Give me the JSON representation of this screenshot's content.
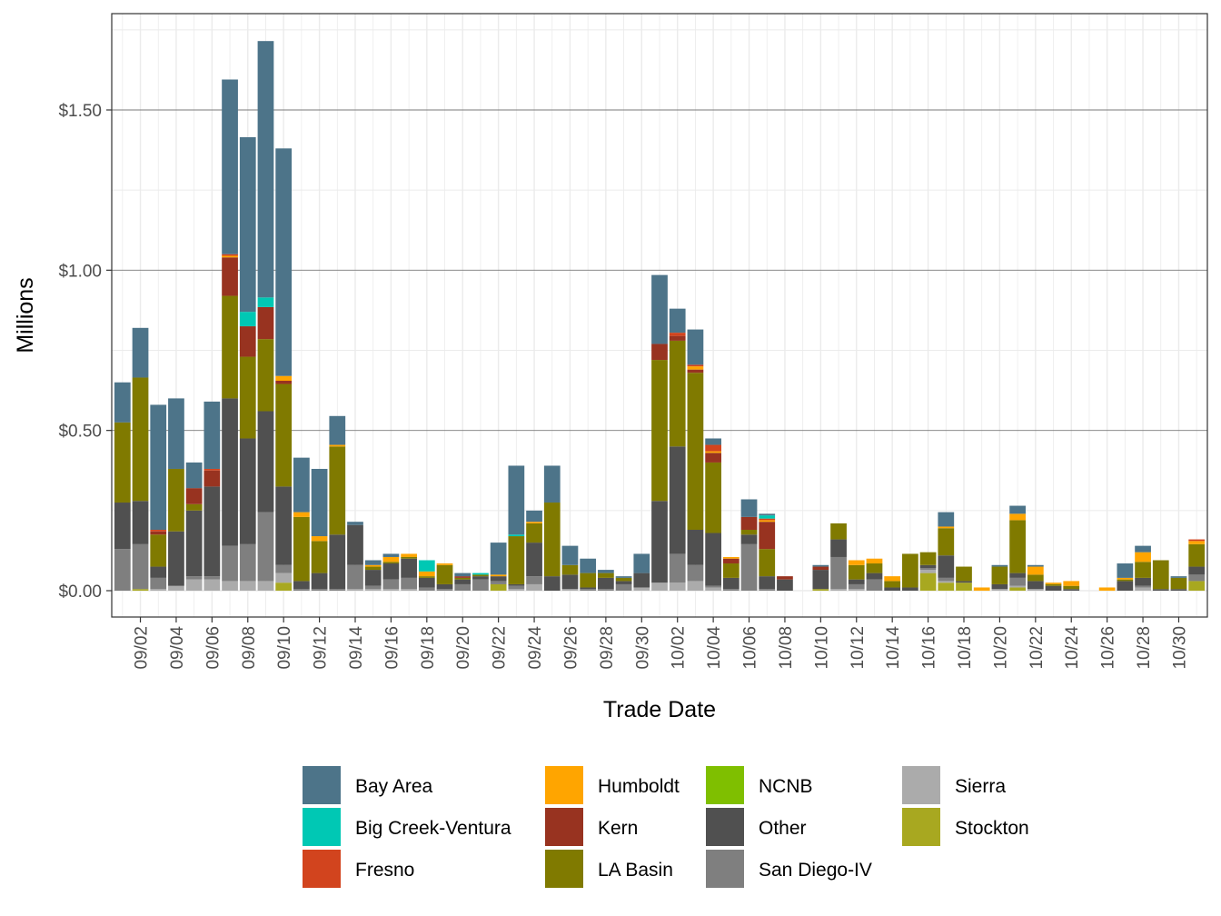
{
  "chart_data": {
    "type": "bar",
    "stacked": true,
    "xlabel": "Trade Date",
    "ylabel": "Millions",
    "yticks": [
      "$0.00",
      "$0.50",
      "$1.00",
      "$1.50"
    ],
    "ytick_values": [
      0,
      0.5,
      1.0,
      1.5
    ],
    "ylim": [
      -0.08,
      1.8
    ],
    "grid": true,
    "legend_position": "bottom",
    "categories": [
      "09/01",
      "09/02",
      "09/03",
      "09/04",
      "09/05",
      "09/06",
      "09/07",
      "09/08",
      "09/09",
      "09/10",
      "09/11",
      "09/12",
      "09/13",
      "09/14",
      "09/15",
      "09/16",
      "09/17",
      "09/18",
      "09/19",
      "09/20",
      "09/21",
      "09/22",
      "09/23",
      "09/24",
      "09/25",
      "09/26",
      "09/27",
      "09/28",
      "09/29",
      "09/30",
      "10/01",
      "10/02",
      "10/03",
      "10/04",
      "10/05",
      "10/06",
      "10/07",
      "10/08",
      "10/09",
      "10/10",
      "10/11",
      "10/12",
      "10/13",
      "10/14",
      "10/15",
      "10/16",
      "10/17",
      "10/18",
      "10/19",
      "10/20",
      "10/21",
      "10/22",
      "10/23",
      "10/24",
      "10/25",
      "10/26",
      "10/27",
      "10/28",
      "10/29",
      "10/30",
      "10/31"
    ],
    "xtick_labels": [
      "09/02",
      "09/04",
      "09/06",
      "09/08",
      "09/10",
      "09/12",
      "09/14",
      "09/16",
      "09/18",
      "09/20",
      "09/22",
      "09/24",
      "09/26",
      "09/28",
      "09/30",
      "10/02",
      "10/04",
      "10/06",
      "10/08",
      "10/10",
      "10/12",
      "10/14",
      "10/16",
      "10/18",
      "10/20",
      "10/22",
      "10/24",
      "10/26",
      "10/28",
      "10/30"
    ],
    "series": [
      {
        "name": "Stockton",
        "color": "#a8a820",
        "values": [
          0,
          0.005,
          0,
          0,
          0,
          0,
          0,
          0,
          0,
          0.025,
          0,
          0,
          0,
          0,
          0,
          0,
          0,
          0,
          0,
          0,
          0,
          0.02,
          0,
          0,
          0,
          0,
          0,
          0,
          0,
          0,
          0,
          0,
          0,
          0,
          0,
          0,
          0,
          0,
          0,
          0.005,
          0,
          0,
          0,
          0,
          0,
          0.055,
          0.025,
          0.025,
          0,
          0,
          0.01,
          0,
          0,
          0,
          0,
          0,
          0,
          0,
          0,
          0,
          0.03
        ]
      },
      {
        "name": "Sierra",
        "color": "#ababab",
        "values": [
          0,
          0,
          0.005,
          0.015,
          0.035,
          0.035,
          0.03,
          0.03,
          0.03,
          0.03,
          0,
          0,
          0,
          0.005,
          0.005,
          0.005,
          0.005,
          0,
          0,
          0,
          0,
          0,
          0.005,
          0.02,
          0,
          0.005,
          0,
          0,
          0,
          0.01,
          0.025,
          0.025,
          0.03,
          0.01,
          0,
          0,
          0,
          0,
          0,
          0,
          0.005,
          0.005,
          0,
          0,
          0,
          0.01,
          0.005,
          0,
          0,
          0.005,
          0.005,
          0.005,
          0,
          0,
          0,
          0,
          0,
          0.01,
          0,
          0,
          0
        ]
      },
      {
        "name": "San Diego-IV",
        "color": "#7f7f7f",
        "values": [
          0.13,
          0.14,
          0.035,
          0,
          0.01,
          0.01,
          0.11,
          0.115,
          0.215,
          0.025,
          0.005,
          0.005,
          0.005,
          0.075,
          0.01,
          0.03,
          0.035,
          0.01,
          0.005,
          0.02,
          0.035,
          0.01,
          0.01,
          0.025,
          0,
          0,
          0.005,
          0.005,
          0.02,
          0,
          0,
          0.09,
          0.05,
          0.005,
          0.005,
          0.145,
          0.005,
          0,
          0,
          0,
          0.1,
          0.015,
          0.035,
          0,
          0,
          0.005,
          0.01,
          0,
          0,
          0,
          0.025,
          0,
          0,
          0,
          0,
          0,
          0,
          0.005,
          0,
          0,
          0.02
        ]
      },
      {
        "name": "Other",
        "color": "#505050",
        "values": [
          0.145,
          0.135,
          0.035,
          0.17,
          0.205,
          0.28,
          0.46,
          0.33,
          0.315,
          0.245,
          0.025,
          0.05,
          0.17,
          0.125,
          0.05,
          0.05,
          0.06,
          0.03,
          0.015,
          0.015,
          0.01,
          0.015,
          0.005,
          0.105,
          0.045,
          0.045,
          0.005,
          0.035,
          0.01,
          0.045,
          0.255,
          0.335,
          0.11,
          0.165,
          0.035,
          0.03,
          0.04,
          0.035,
          0,
          0.06,
          0.055,
          0.015,
          0.02,
          0.01,
          0.01,
          0.01,
          0.07,
          0.005,
          0,
          0.015,
          0.015,
          0.025,
          0.015,
          0.005,
          0,
          0,
          0.03,
          0.025,
          0.005,
          0.005,
          0.025
        ]
      },
      {
        "name": "NCNB",
        "color": "#7fbf00",
        "values": [
          0,
          0,
          0,
          0,
          0,
          0,
          0,
          0,
          0,
          0,
          0,
          0,
          0,
          0,
          0,
          0,
          0,
          0,
          0,
          0,
          0,
          0,
          0,
          0,
          0,
          0,
          0,
          0,
          0,
          0,
          0,
          0,
          0,
          0,
          0,
          0,
          0,
          0,
          0,
          0,
          0,
          0,
          0,
          0,
          0,
          0,
          0,
          0,
          0,
          0,
          0,
          0,
          0,
          0,
          0,
          0,
          0,
          0,
          0,
          0,
          0
        ]
      },
      {
        "name": "LA Basin",
        "color": "#807a00",
        "values": [
          0.25,
          0.385,
          0.1,
          0.195,
          0.02,
          0,
          0.32,
          0.255,
          0.225,
          0.32,
          0.2,
          0.1,
          0.275,
          0,
          0.01,
          0.005,
          0.005,
          0.005,
          0.06,
          0.005,
          0.005,
          0,
          0.15,
          0.06,
          0.23,
          0.03,
          0.045,
          0.015,
          0.01,
          0,
          0.44,
          0.33,
          0.49,
          0.22,
          0.045,
          0.015,
          0.085,
          0,
          0,
          0,
          0.05,
          0.045,
          0.03,
          0.02,
          0.105,
          0.04,
          0.085,
          0.045,
          0,
          0.055,
          0.165,
          0.02,
          0.005,
          0.01,
          0,
          0,
          0.005,
          0.05,
          0.09,
          0.035,
          0.07
        ]
      },
      {
        "name": "Kern",
        "color": "#983320",
        "values": [
          0,
          0,
          0.01,
          0,
          0.05,
          0.05,
          0.12,
          0.095,
          0.1,
          0.01,
          0,
          0,
          0,
          0,
          0,
          0,
          0,
          0,
          0,
          0.005,
          0,
          0,
          0,
          0,
          0,
          0,
          0,
          0,
          0,
          0,
          0.05,
          0.015,
          0.01,
          0.03,
          0.015,
          0.04,
          0.085,
          0.01,
          0,
          0.01,
          0,
          0,
          0,
          0,
          0,
          0,
          0,
          0,
          0,
          0,
          0,
          0,
          0,
          0,
          0,
          0,
          0,
          0,
          0,
          0,
          0
        ]
      },
      {
        "name": "Humboldt",
        "color": "#ffa500",
        "values": [
          0,
          0,
          0,
          0,
          0,
          0,
          0.005,
          0,
          0,
          0.015,
          0.015,
          0.015,
          0.005,
          0,
          0.005,
          0.015,
          0.01,
          0.015,
          0.005,
          0,
          0,
          0.005,
          0,
          0.005,
          0,
          0,
          0,
          0,
          0,
          0,
          0,
          0,
          0.01,
          0.005,
          0.005,
          0,
          0.005,
          0,
          0,
          0,
          0,
          0.015,
          0.015,
          0.015,
          0,
          0,
          0.005,
          0,
          0.01,
          0,
          0.02,
          0.025,
          0.005,
          0.015,
          0,
          0.01,
          0.005,
          0.03,
          0,
          0,
          0.01
        ]
      },
      {
        "name": "Fresno",
        "color": "#d2441e",
        "values": [
          0,
          0,
          0.005,
          0,
          0,
          0.005,
          0.005,
          0,
          0,
          0,
          0,
          0,
          0,
          0,
          0,
          0,
          0,
          0,
          0,
          0,
          0,
          0,
          0,
          0,
          0,
          0,
          0,
          0,
          0,
          0,
          0,
          0.01,
          0.005,
          0.02,
          0,
          0,
          0.005,
          0,
          0,
          0,
          0,
          0,
          0,
          0,
          0,
          0,
          0,
          0,
          0,
          0,
          0,
          0,
          0,
          0,
          0,
          0,
          0,
          0,
          0,
          0,
          0.005
        ]
      },
      {
        "name": "Big Creek-Ventura",
        "color": "#00c8b4",
        "values": [
          0,
          0,
          0,
          0,
          0,
          0,
          0,
          0.045,
          0.03,
          0,
          0,
          0,
          0,
          0,
          0,
          0,
          0,
          0.035,
          0,
          0,
          0.005,
          0,
          0.005,
          0,
          0,
          0,
          0,
          0,
          0,
          0,
          0,
          0,
          0,
          0,
          0,
          0,
          0.01,
          0,
          0,
          0,
          0,
          0,
          0,
          0,
          0,
          0,
          0,
          0,
          0,
          0,
          0,
          0,
          0,
          0,
          0,
          0,
          0,
          0,
          0,
          0,
          0
        ]
      },
      {
        "name": "Bay Area",
        "color": "#4d7489",
        "values": [
          0.125,
          0.155,
          0.39,
          0.22,
          0.08,
          0.21,
          0.545,
          0.545,
          0.8,
          0.71,
          0.17,
          0.21,
          0.09,
          0.01,
          0.015,
          0.01,
          0,
          0,
          0,
          0.01,
          0,
          0.1,
          0.215,
          0.035,
          0.115,
          0.06,
          0.045,
          0.01,
          0.005,
          0.06,
          0.215,
          0.075,
          0.11,
          0.02,
          0,
          0.055,
          0.005,
          0,
          0,
          0.005,
          0,
          0,
          0,
          0,
          0,
          0,
          0.045,
          0,
          0,
          0.005,
          0.025,
          0.005,
          0,
          0,
          0,
          0,
          0.045,
          0.02,
          0,
          0.005,
          0
        ]
      }
    ],
    "legend": {
      "columns": [
        [
          "Bay Area",
          "Big Creek-Ventura",
          "Fresno"
        ],
        [
          "Humboldt",
          "Kern",
          "LA Basin"
        ],
        [
          "NCNB",
          "Other",
          "San Diego-IV"
        ],
        [
          "Sierra",
          "Stockton"
        ]
      ]
    }
  }
}
